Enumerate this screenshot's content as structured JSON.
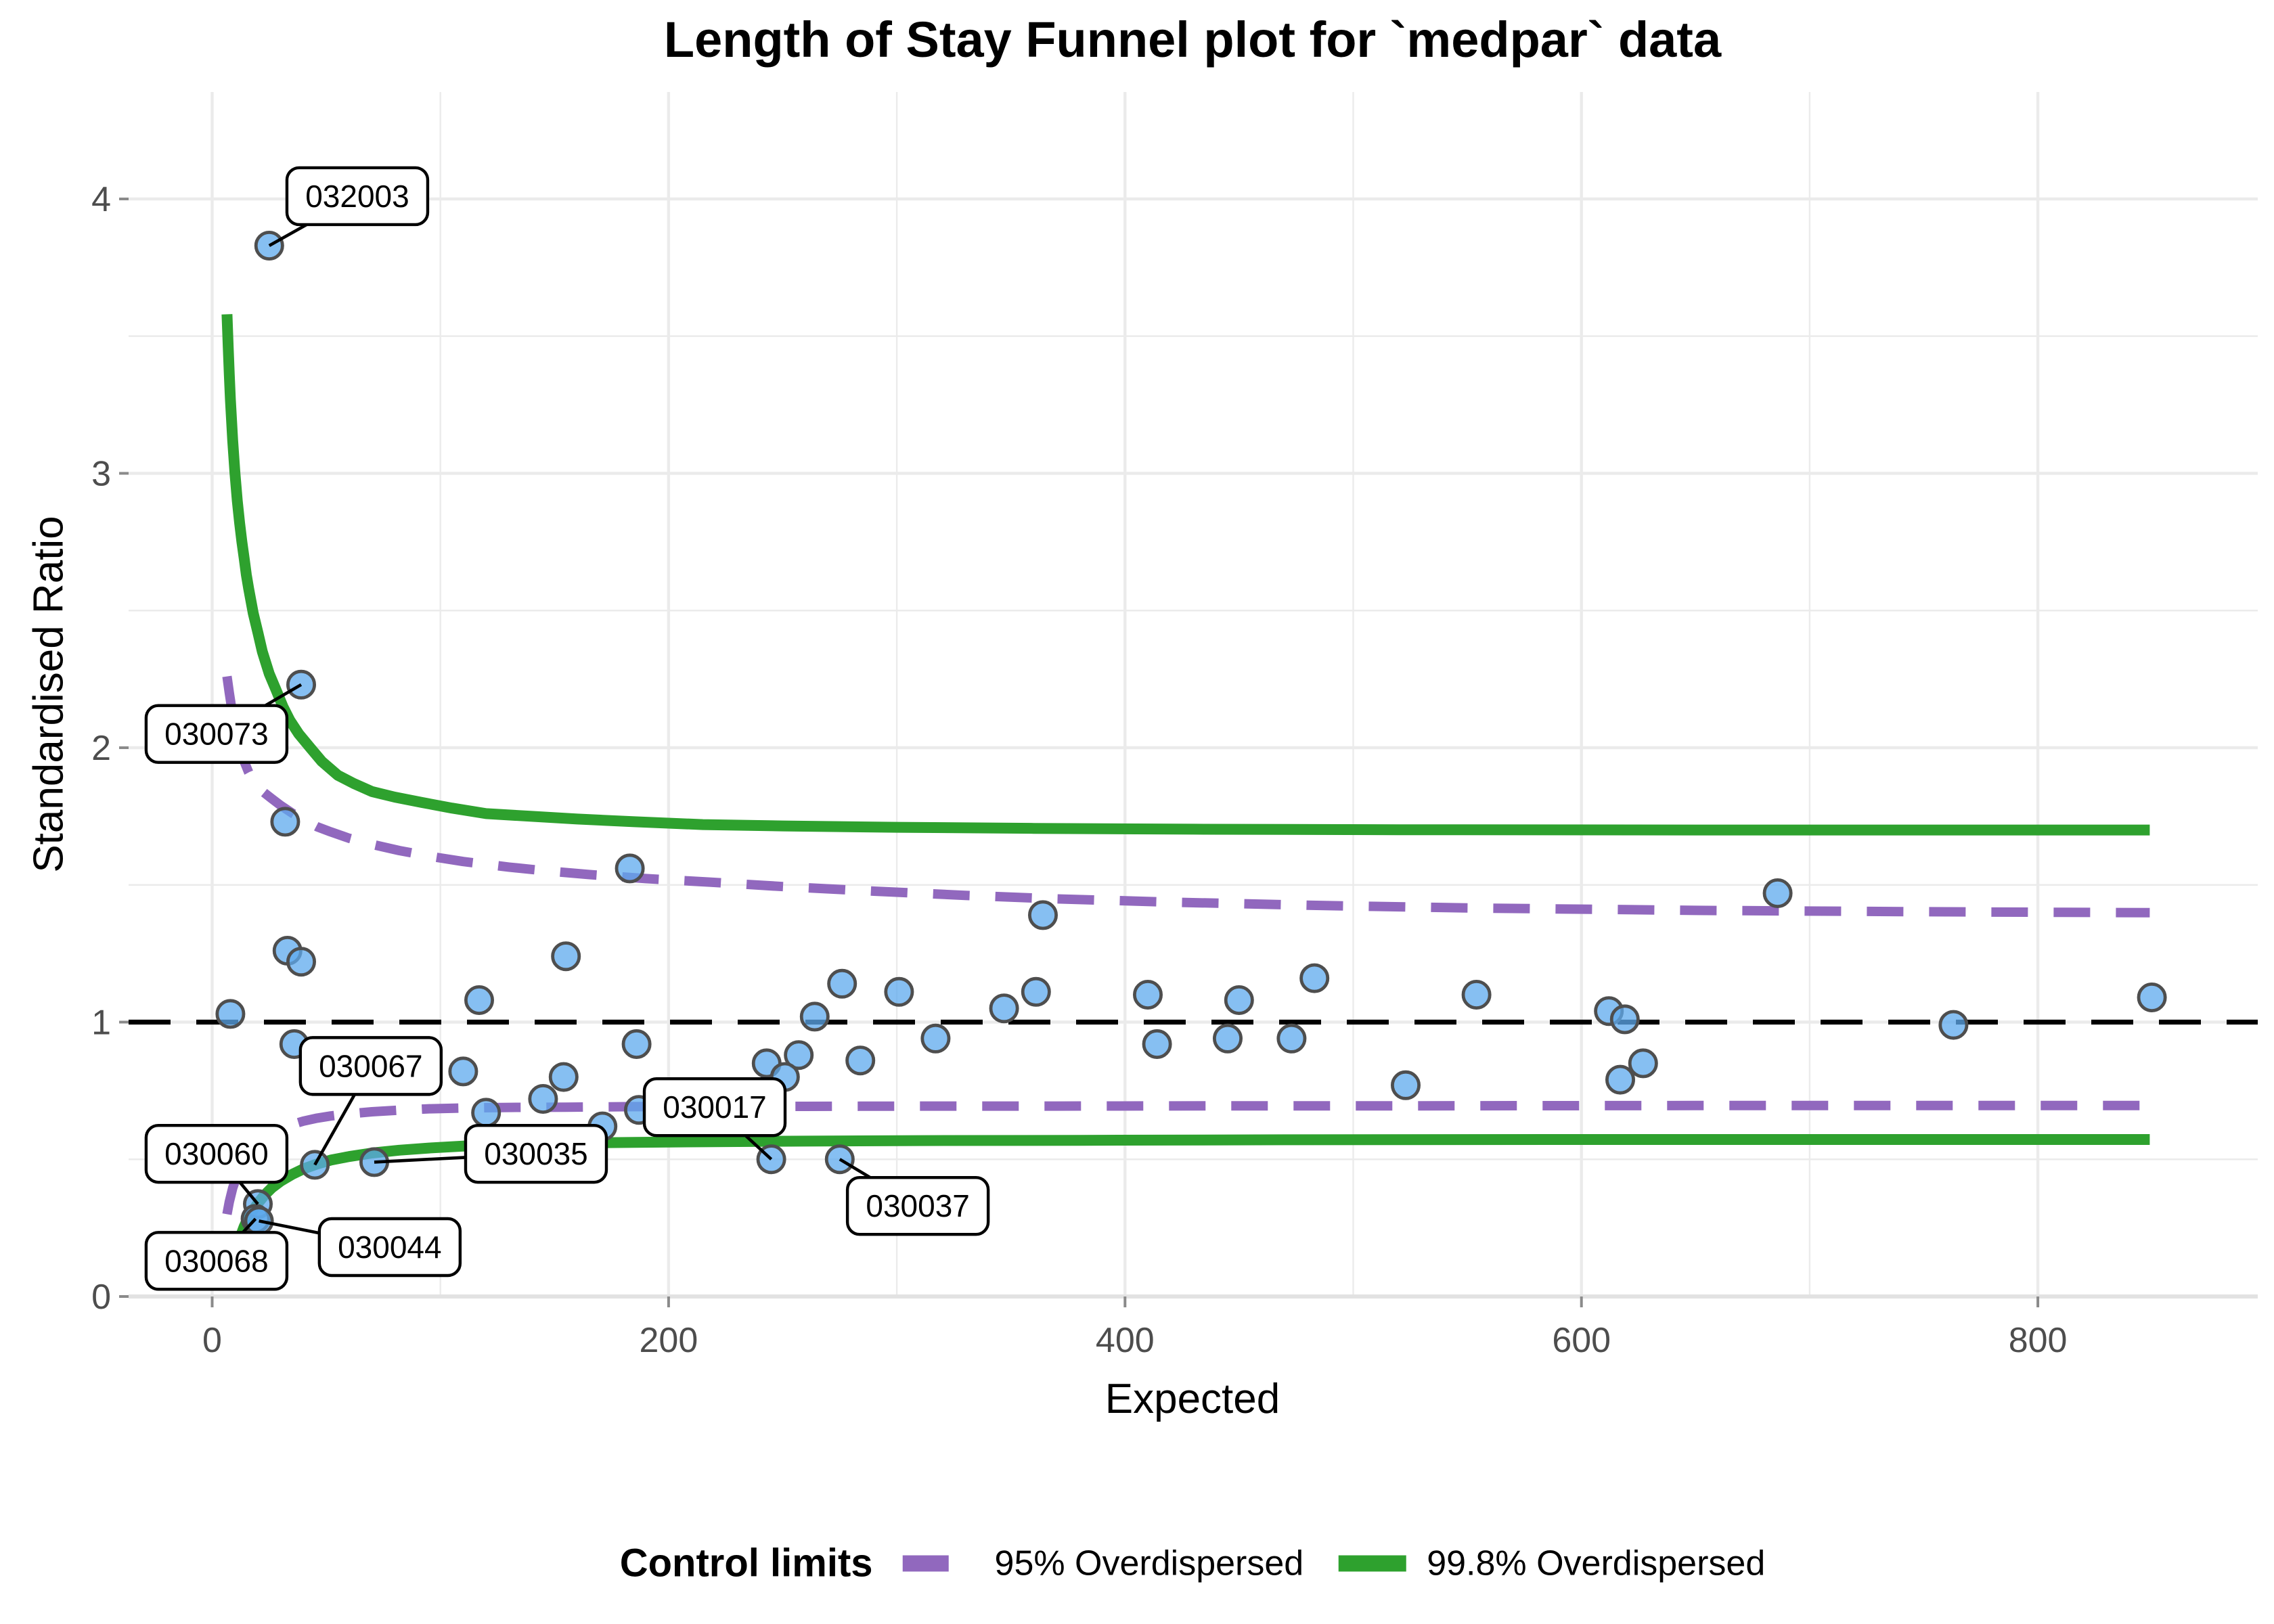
{
  "title": "Length of Stay Funnel plot for `medpar` data",
  "axes": {
    "x_label": "Expected",
    "y_label": "Standardised Ratio",
    "x_ticks": [
      0,
      200,
      400,
      600,
      800
    ],
    "x_minor_ticks": [
      100,
      300,
      500,
      700
    ],
    "y_ticks": [
      0,
      1,
      2,
      3,
      4
    ],
    "y_minor_ticks": [
      0.5,
      1.5,
      2.5,
      3.5
    ],
    "x_range": [
      -37,
      896
    ],
    "y_range": [
      0,
      4.39
    ],
    "grid": true
  },
  "legend": {
    "title": "Control limits",
    "items": [
      {
        "label": "95% Overdispersed",
        "style": "dashed",
        "color": "#9168BE"
      },
      {
        "label": "99.8% Overdispersed",
        "style": "solid",
        "color": "#2EA12E"
      }
    ]
  },
  "colors": {
    "point_fill": "#5DA9EE",
    "point_stroke": "#4E4E4E",
    "limit_95": "#9168BE",
    "limit_998": "#2EA12E",
    "target_line": "#000000",
    "grid": "#EBEBEB",
    "axis_tick": "#8A8A8A",
    "tick_label": "#4D4D4D",
    "label_box_fill": "#FFFFFF",
    "label_box_stroke": "#000000"
  },
  "chart_data": {
    "type": "scatter",
    "title": "Length of Stay Funnel plot for `medpar` data",
    "xlabel": "Expected",
    "ylabel": "Standardised Ratio",
    "target_ratio": 1,
    "legend_position": "bottom",
    "points": [
      {
        "x": 25,
        "y": 3.83,
        "label": "032003"
      },
      {
        "x": 39,
        "y": 2.23,
        "label": "030073"
      },
      {
        "x": 32,
        "y": 1.73
      },
      {
        "x": 183,
        "y": 1.56
      },
      {
        "x": 686,
        "y": 1.47
      },
      {
        "x": 364,
        "y": 1.39
      },
      {
        "x": 33,
        "y": 1.26
      },
      {
        "x": 155,
        "y": 1.24
      },
      {
        "x": 39,
        "y": 1.22
      },
      {
        "x": 483,
        "y": 1.16
      },
      {
        "x": 276,
        "y": 1.14
      },
      {
        "x": 301,
        "y": 1.11
      },
      {
        "x": 361,
        "y": 1.11
      },
      {
        "x": 410,
        "y": 1.1
      },
      {
        "x": 554,
        "y": 1.1
      },
      {
        "x": 850,
        "y": 1.09
      },
      {
        "x": 117,
        "y": 1.08
      },
      {
        "x": 450,
        "y": 1.08
      },
      {
        "x": 347,
        "y": 1.05
      },
      {
        "x": 612,
        "y": 1.04
      },
      {
        "x": 8,
        "y": 1.03
      },
      {
        "x": 264,
        "y": 1.02
      },
      {
        "x": 619,
        "y": 1.01
      },
      {
        "x": 763,
        "y": 0.99
      },
      {
        "x": 445,
        "y": 0.94
      },
      {
        "x": 473,
        "y": 0.94
      },
      {
        "x": 317,
        "y": 0.94
      },
      {
        "x": 36,
        "y": 0.92
      },
      {
        "x": 186,
        "y": 0.92
      },
      {
        "x": 414,
        "y": 0.92
      },
      {
        "x": 257,
        "y": 0.88
      },
      {
        "x": 284,
        "y": 0.86
      },
      {
        "x": 627,
        "y": 0.85
      },
      {
        "x": 243,
        "y": 0.85
      },
      {
        "x": 110,
        "y": 0.82
      },
      {
        "x": 154,
        "y": 0.8
      },
      {
        "x": 251,
        "y": 0.8
      },
      {
        "x": 617,
        "y": 0.79
      },
      {
        "x": 523,
        "y": 0.77
      },
      {
        "x": 145,
        "y": 0.72
      },
      {
        "x": 187,
        "y": 0.68
      },
      {
        "x": 120,
        "y": 0.67
      },
      {
        "x": 171,
        "y": 0.62
      },
      {
        "x": 245,
        "y": 0.5,
        "label": "030017"
      },
      {
        "x": 275,
        "y": 0.5,
        "label": "030037"
      },
      {
        "x": 71,
        "y": 0.49,
        "label": "030035"
      },
      {
        "x": 45,
        "y": 0.48,
        "label": "030067"
      },
      {
        "x": 20,
        "y": 0.337,
        "label": "030060"
      },
      {
        "x": 19,
        "y": 0.283,
        "label": "030068"
      },
      {
        "x": 20.5,
        "y": 0.275,
        "label": "030044"
      }
    ],
    "annotations": [
      {
        "text": "032003",
        "point": [
          25,
          3.83
        ],
        "box": [
          63.6,
          4.01
        ]
      },
      {
        "text": "030073",
        "point": [
          39,
          2.23
        ],
        "box": [
          1.9,
          2.05
        ]
      },
      {
        "text": "030067",
        "point": [
          45,
          0.48
        ],
        "box": [
          69.5,
          0.84
        ]
      },
      {
        "text": "030060",
        "point": [
          20,
          0.337
        ],
        "box": [
          1.9,
          0.52
        ]
      },
      {
        "text": "030068",
        "point": [
          19,
          0.283
        ],
        "box": [
          1.9,
          0.13
        ]
      },
      {
        "text": "030044",
        "point": [
          20.5,
          0.275
        ],
        "box": [
          77.8,
          0.18
        ]
      },
      {
        "text": "030035",
        "point": [
          71,
          0.49
        ],
        "box": [
          141.9,
          0.52
        ]
      },
      {
        "text": "030017",
        "point": [
          245,
          0.5
        ],
        "box": [
          220.2,
          0.69
        ]
      },
      {
        "text": "030037",
        "point": [
          275,
          0.5
        ],
        "box": [
          309.2,
          0.33
        ]
      }
    ],
    "limit_curves": {
      "overdispersed_998_upper": [
        [
          6.5,
          3.58
        ],
        [
          7,
          3.46
        ],
        [
          7.5,
          3.36
        ],
        [
          8,
          3.27
        ],
        [
          9,
          3.12
        ],
        [
          10,
          3.0
        ],
        [
          11,
          2.9
        ],
        [
          12,
          2.82
        ],
        [
          13,
          2.75
        ],
        [
          14,
          2.69
        ],
        [
          15,
          2.63
        ],
        [
          16,
          2.58
        ],
        [
          18,
          2.49
        ],
        [
          20,
          2.42
        ],
        [
          22,
          2.35
        ],
        [
          25,
          2.27
        ],
        [
          28,
          2.21
        ],
        [
          31,
          2.15
        ],
        [
          34,
          2.1
        ],
        [
          38,
          2.05
        ],
        [
          43,
          2.0
        ],
        [
          48,
          1.95
        ],
        [
          55,
          1.9
        ],
        [
          62,
          1.87
        ],
        [
          70,
          1.84
        ],
        [
          80,
          1.82
        ],
        [
          92,
          1.8
        ],
        [
          105,
          1.78
        ],
        [
          120,
          1.76
        ],
        [
          140,
          1.75
        ],
        [
          160,
          1.74
        ],
        [
          185,
          1.73
        ],
        [
          215,
          1.72
        ],
        [
          250,
          1.715
        ],
        [
          300,
          1.71
        ],
        [
          360,
          1.706
        ],
        [
          430,
          1.703
        ],
        [
          520,
          1.701
        ],
        [
          650,
          1.7
        ],
        [
          849,
          1.7
        ]
      ],
      "overdispersed_998_lower": [
        [
          6.5,
          0.04
        ],
        [
          8,
          0.1
        ],
        [
          10,
          0.16
        ],
        [
          12,
          0.21
        ],
        [
          14,
          0.255
        ],
        [
          16,
          0.29
        ],
        [
          18,
          0.315
        ],
        [
          20,
          0.34
        ],
        [
          23,
          0.37
        ],
        [
          26,
          0.395
        ],
        [
          30,
          0.42
        ],
        [
          35,
          0.445
        ],
        [
          40,
          0.465
        ],
        [
          46,
          0.483
        ],
        [
          52,
          0.497
        ],
        [
          60,
          0.51
        ],
        [
          70,
          0.523
        ],
        [
          82,
          0.533
        ],
        [
          95,
          0.541
        ],
        [
          110,
          0.548
        ],
        [
          130,
          0.555
        ],
        [
          155,
          0.559
        ],
        [
          185,
          0.562
        ],
        [
          220,
          0.564
        ],
        [
          260,
          0.566
        ],
        [
          310,
          0.568
        ],
        [
          380,
          0.569
        ],
        [
          470,
          0.571
        ],
        [
          600,
          0.572
        ],
        [
          849,
          0.572
        ]
      ],
      "overdispersed_95_upper": [
        [
          6.5,
          2.26
        ],
        [
          7.5,
          2.2
        ],
        [
          9,
          2.12
        ],
        [
          10.5,
          2.06
        ],
        [
          12,
          2.0
        ],
        [
          14,
          1.95
        ],
        [
          16,
          1.91
        ],
        [
          18,
          1.88
        ],
        [
          20,
          1.855
        ],
        [
          23,
          1.835
        ],
        [
          26,
          1.815
        ],
        [
          30,
          1.79
        ],
        [
          35,
          1.762
        ],
        [
          40,
          1.738
        ],
        [
          46,
          1.712
        ],
        [
          52,
          1.693
        ],
        [
          60,
          1.67
        ],
        [
          70,
          1.648
        ],
        [
          82,
          1.625
        ],
        [
          95,
          1.605
        ],
        [
          110,
          1.585
        ],
        [
          130,
          1.565
        ],
        [
          145,
          1.552
        ],
        [
          165,
          1.538
        ],
        [
          190,
          1.523
        ],
        [
          218,
          1.51
        ],
        [
          250,
          1.494
        ],
        [
          290,
          1.477
        ],
        [
          330,
          1.462
        ],
        [
          370,
          1.449
        ],
        [
          420,
          1.437
        ],
        [
          480,
          1.426
        ],
        [
          550,
          1.416
        ],
        [
          650,
          1.407
        ],
        [
          750,
          1.402
        ],
        [
          849,
          1.399
        ]
      ],
      "overdispersed_95_lower": [
        [
          6.5,
          0.3
        ],
        [
          7.5,
          0.345
        ],
        [
          9,
          0.395
        ],
        [
          10.5,
          0.432
        ],
        [
          12,
          0.462
        ],
        [
          14,
          0.494
        ],
        [
          16,
          0.52
        ],
        [
          18,
          0.541
        ],
        [
          20,
          0.558
        ],
        [
          23,
          0.578
        ],
        [
          26,
          0.594
        ],
        [
          30,
          0.611
        ],
        [
          35,
          0.627
        ],
        [
          40,
          0.639
        ],
        [
          46,
          0.65
        ],
        [
          52,
          0.658
        ],
        [
          60,
          0.666
        ],
        [
          70,
          0.673
        ],
        [
          82,
          0.679
        ],
        [
          95,
          0.684
        ],
        [
          110,
          0.687
        ],
        [
          130,
          0.689
        ],
        [
          155,
          0.69
        ],
        [
          185,
          0.692
        ],
        [
          220,
          0.692
        ],
        [
          260,
          0.693
        ],
        [
          310,
          0.694
        ],
        [
          370,
          0.694
        ],
        [
          440,
          0.695
        ],
        [
          530,
          0.695
        ],
        [
          650,
          0.696
        ],
        [
          849,
          0.696
        ]
      ]
    }
  }
}
